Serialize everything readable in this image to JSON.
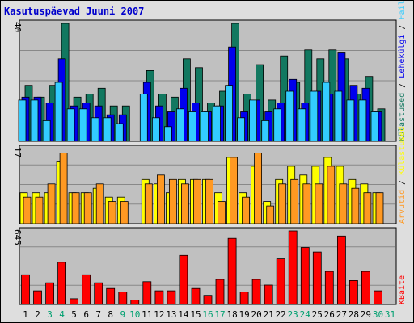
{
  "title": "Kasutuspäevad Juuni 2007",
  "colors": {
    "background": "#dedede",
    "plot": "#c0c0c0",
    "title": "#0000cc",
    "visits": "#127860",
    "pages": "#0000ee",
    "files": "#33ccff",
    "hits": "#ff9922",
    "unique": "#ffff00",
    "kbytes": "#ff0000",
    "weekday_label": "#000000",
    "weekend_label": "#00a070"
  },
  "chart_data": [
    {
      "type": "bar",
      "panel": "top",
      "max_label": "40",
      "ylim": [
        0,
        40
      ],
      "legend": [
        {
          "text": "Külastused",
          "color": "#127860"
        },
        {
          "text": "Lehekülgi",
          "color": "#0000ee"
        },
        {
          "text": "Faile",
          "color": "#33ccff"
        },
        {
          "text": "Pöördumisi",
          "color": "#127860"
        }
      ],
      "categories": [
        "1",
        "2",
        "3",
        "4",
        "5",
        "6",
        "7",
        "8",
        "9",
        "10",
        "11",
        "12",
        "13",
        "14",
        "15",
        "16",
        "17",
        "18",
        "19",
        "20",
        "21",
        "22",
        "23",
        "24",
        "25",
        "26",
        "27",
        "28",
        "29",
        "30",
        "31"
      ],
      "series": [
        {
          "values": [
            19,
            15,
            19,
            40,
            15,
            16,
            18,
            12,
            12,
            0,
            24,
            16,
            15,
            28,
            25,
            13,
            17,
            40,
            16,
            26,
            14,
            29,
            20,
            31,
            28,
            31,
            28,
            16,
            22,
            11,
            0
          ]
        },
        {
          "values": [
            15,
            15,
            13,
            28,
            12,
            13,
            12,
            9,
            9,
            0,
            20,
            12,
            10,
            18,
            13,
            10,
            12,
            32,
            10,
            14,
            10,
            13,
            21,
            13,
            17,
            16,
            30,
            19,
            18,
            10,
            0
          ]
        },
        {
          "values": [
            14,
            14,
            7,
            20,
            11,
            11,
            8,
            8,
            6,
            0,
            16,
            8,
            5,
            11,
            10,
            10,
            12,
            19,
            8,
            14,
            7,
            11,
            17,
            11,
            17,
            20,
            17,
            14,
            14,
            10,
            0
          ]
        }
      ]
    },
    {
      "type": "bar",
      "panel": "middle",
      "max_label": "17",
      "ylim": [
        0,
        17
      ],
      "legend": [
        {
          "text": "Arvutid",
          "color": "#ff9922"
        },
        {
          "text": "Külastused",
          "color": "#ffff00"
        }
      ],
      "categories": [
        "1",
        "2",
        "3",
        "4",
        "5",
        "6",
        "7",
        "8",
        "9",
        "10",
        "11",
        "12",
        "13",
        "14",
        "15",
        "16",
        "17",
        "18",
        "19",
        "20",
        "21",
        "22",
        "23",
        "24",
        "25",
        "26",
        "27",
        "28",
        "29",
        "30",
        "31"
      ],
      "series": [
        {
          "values": [
            7,
            7,
            7,
            14,
            7,
            7,
            8,
            6,
            6,
            0,
            10,
            9,
            7,
            10,
            10,
            10,
            7,
            15,
            7,
            13,
            5,
            10,
            13,
            11,
            13,
            15,
            13,
            10,
            9,
            7,
            0
          ]
        },
        {
          "values": [
            6,
            6,
            9,
            16,
            7,
            7,
            9,
            5,
            5,
            0,
            9,
            11,
            10,
            9,
            10,
            10,
            5,
            15,
            6,
            16,
            4,
            9,
            10,
            9,
            9,
            13,
            9,
            8,
            7,
            7,
            0
          ]
        }
      ]
    },
    {
      "type": "bar",
      "panel": "bottom",
      "max_label": "645",
      "ylim": [
        0,
        645
      ],
      "legend": [
        {
          "text": "KBaite",
          "color": "#ff0000"
        }
      ],
      "categories": [
        "1",
        "2",
        "3",
        "4",
        "5",
        "6",
        "7",
        "8",
        "9",
        "10",
        "11",
        "12",
        "13",
        "14",
        "15",
        "16",
        "17",
        "18",
        "19",
        "20",
        "21",
        "22",
        "23",
        "24",
        "25",
        "26",
        "27",
        "28",
        "29",
        "30",
        "31"
      ],
      "series": [
        {
          "values": [
            260,
            120,
            190,
            370,
            50,
            260,
            190,
            140,
            110,
            40,
            200,
            120,
            120,
            430,
            140,
            80,
            220,
            580,
            110,
            220,
            170,
            400,
            645,
            500,
            460,
            290,
            600,
            210,
            290,
            120,
            0
          ]
        }
      ]
    }
  ],
  "x_labels": [
    {
      "t": "1",
      "w": false
    },
    {
      "t": "2",
      "w": false
    },
    {
      "t": "3",
      "w": true
    },
    {
      "t": "4",
      "w": true
    },
    {
      "t": "5",
      "w": false
    },
    {
      "t": "6",
      "w": false
    },
    {
      "t": "7",
      "w": false
    },
    {
      "t": "8",
      "w": false
    },
    {
      "t": "9",
      "w": true
    },
    {
      "t": "10",
      "w": true
    },
    {
      "t": "11",
      "w": false
    },
    {
      "t": "12",
      "w": false
    },
    {
      "t": "13",
      "w": false
    },
    {
      "t": "14",
      "w": false
    },
    {
      "t": "15",
      "w": false
    },
    {
      "t": "16",
      "w": true
    },
    {
      "t": "17",
      "w": true
    },
    {
      "t": "18",
      "w": false
    },
    {
      "t": "19",
      "w": false
    },
    {
      "t": "20",
      "w": false
    },
    {
      "t": "21",
      "w": false
    },
    {
      "t": "22",
      "w": false
    },
    {
      "t": "23",
      "w": true
    },
    {
      "t": "24",
      "w": true
    },
    {
      "t": "25",
      "w": false
    },
    {
      "t": "26",
      "w": false
    },
    {
      "t": "27",
      "w": false
    },
    {
      "t": "28",
      "w": false
    },
    {
      "t": "29",
      "w": false
    },
    {
      "t": "30",
      "w": true
    },
    {
      "t": "31",
      "w": true
    }
  ]
}
